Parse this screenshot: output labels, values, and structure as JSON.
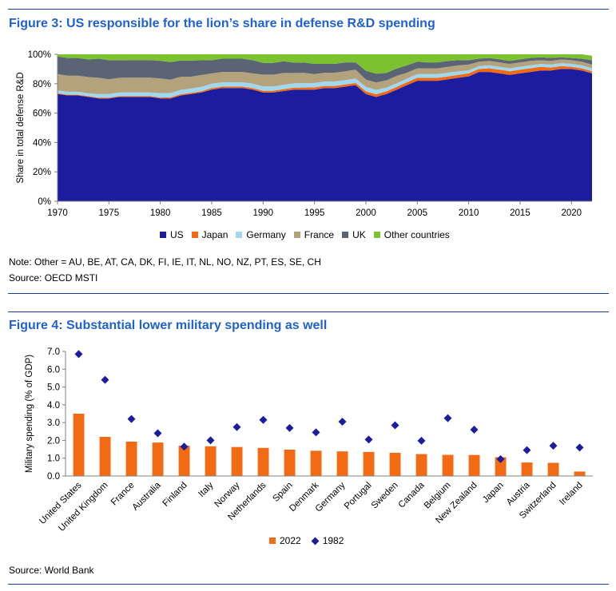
{
  "figure3": {
    "title": "Figure 3: US responsible for the lion’s share in defense R&D spending",
    "note": "Note: Other = AU, BE, AT, CA, DK, FI, IE, IT, NL, NO, NZ, PT, ES, SE, CH",
    "source": "Source: OECD MSTI"
  },
  "figure4": {
    "title": "Figure 4: Substantial lower military spending as well",
    "source": "Source: World Bank"
  },
  "chart_data": [
    {
      "type": "area",
      "title": "Figure 3: US responsible for the lion’s share in defense R&D spending",
      "ylabel": "Share in total defense R&D",
      "xlim": [
        1970,
        2022
      ],
      "ylim": [
        0,
        100
      ],
      "x_ticks": [
        "1970",
        "1975",
        "1980",
        "1985",
        "1990",
        "1995",
        "2000",
        "2005",
        "2010",
        "2015",
        "2020"
      ],
      "y_ticks": [
        "0%",
        "20%",
        "40%",
        "60%",
        "80%",
        "100%"
      ],
      "legend_position": "bottom",
      "grid": false,
      "x": [
        1970,
        1971,
        1972,
        1973,
        1974,
        1975,
        1976,
        1977,
        1978,
        1979,
        1980,
        1981,
        1982,
        1983,
        1984,
        1985,
        1986,
        1987,
        1988,
        1989,
        1990,
        1991,
        1992,
        1993,
        1994,
        1995,
        1996,
        1997,
        1998,
        1999,
        2000,
        2001,
        2002,
        2003,
        2004,
        2005,
        2006,
        2007,
        2008,
        2009,
        2010,
        2011,
        2012,
        2013,
        2014,
        2015,
        2016,
        2017,
        2018,
        2019,
        2020,
        2021,
        2022
      ],
      "series": [
        {
          "name": "US",
          "color": "#1c1c9e",
          "values": [
            73,
            72,
            72,
            71,
            70,
            70,
            71,
            71,
            71,
            71,
            70,
            70,
            72,
            73,
            74,
            76,
            77,
            77,
            77,
            76,
            74,
            74,
            75,
            76,
            76,
            76,
            77,
            77,
            78,
            79,
            73,
            71,
            73,
            76,
            79,
            82,
            82,
            82,
            83,
            84,
            85,
            88,
            88,
            87,
            86,
            87,
            88,
            89,
            89,
            90,
            90,
            89,
            87
          ]
        },
        {
          "name": "Japan",
          "color": "#f26b14",
          "values": [
            0.5,
            0.5,
            0.5,
            0.5,
            0.5,
            0.5,
            0.5,
            0.6,
            0.6,
            0.6,
            0.6,
            0.7,
            0.8,
            0.8,
            0.9,
            1,
            1,
            1,
            1,
            1,
            1.2,
            1.2,
            1.3,
            1.3,
            1.4,
            1.5,
            1.5,
            1.5,
            1.5,
            1.5,
            1.8,
            1.8,
            1.8,
            1.8,
            2,
            2,
            2,
            2,
            2,
            2,
            2,
            2,
            2.5,
            2.5,
            2.5,
            2.5,
            2.5,
            2.5,
            2,
            2,
            1.5,
            1.5,
            1.5
          ]
        },
        {
          "name": "Germany",
          "color": "#9fd8f0",
          "values": [
            2,
            2,
            2,
            2,
            2.5,
            2.5,
            2.5,
            2.5,
            2.5,
            2.5,
            3,
            3,
            3,
            3,
            3,
            3,
            3,
            3,
            3,
            3,
            3,
            3,
            3,
            3,
            3,
            3,
            3,
            3,
            3,
            3,
            3,
            3,
            2.5,
            2.5,
            2.5,
            2.5,
            2.5,
            2.5,
            2.5,
            2.5,
            2,
            2,
            2,
            2,
            2,
            2,
            2,
            2,
            2,
            2,
            2,
            2,
            2
          ]
        },
        {
          "name": "France",
          "color": "#b3a27b",
          "values": [
            11,
            11,
            11,
            11,
            11,
            10,
            10,
            10,
            10,
            10,
            10,
            9,
            9,
            8,
            8,
            7,
            7,
            7,
            7,
            7,
            8,
            8,
            8,
            7,
            7,
            6,
            6,
            6,
            6,
            6,
            5,
            5,
            5,
            5,
            4,
            4,
            4,
            4,
            4,
            4,
            4,
            3,
            3,
            3,
            3,
            3,
            3,
            2.5,
            2.5,
            2.5,
            2.5,
            2.5,
            2.5
          ]
        },
        {
          "name": "UK",
          "color": "#5a6474",
          "values": [
            12,
            12,
            12,
            12,
            13,
            13,
            12,
            12,
            12,
            12,
            12,
            12,
            11,
            11,
            10,
            9,
            9,
            9,
            9,
            9,
            8,
            8,
            8,
            7,
            7,
            7,
            6,
            6,
            6,
            5,
            6,
            6,
            5,
            5,
            5,
            4.5,
            4,
            4,
            4,
            3.5,
            3,
            2,
            2,
            2,
            2,
            2,
            2,
            2,
            2,
            1.5,
            1.5,
            2,
            3
          ]
        },
        {
          "name": "Other countries",
          "color": "#7cc12f",
          "values": [
            1.5,
            2.5,
            2.5,
            3.5,
            3,
            4,
            4,
            3.9,
            3.9,
            3.9,
            4.4,
            5.3,
            4.2,
            4.2,
            4.1,
            4,
            3,
            3,
            3,
            4,
            5.8,
            5.8,
            4.7,
            5.7,
            5.6,
            6.5,
            6.5,
            6.5,
            5.5,
            5.5,
            11.2,
            13.2,
            12.7,
            9.7,
            7.5,
            5,
            5.5,
            5.5,
            4.5,
            4.5,
            4,
            3,
            2.5,
            3.5,
            4.5,
            3.5,
            2.5,
            2,
            2.5,
            2,
            2.5,
            3,
            3
          ]
        }
      ]
    },
    {
      "type": "bar",
      "title": "Figure 4: Substantial lower military spending as well",
      "ylabel": "Military spending (% of GDP)",
      "ylim": [
        0,
        7
      ],
      "y_ticks": [
        "0.0",
        "1.0",
        "2.0",
        "3.0",
        "4.0",
        "5.0",
        "6.0",
        "7.0"
      ],
      "legend_position": "bottom",
      "grid": false,
      "categories": [
        "United States",
        "United Kingdom",
        "France",
        "Australia",
        "Finland",
        "Italy",
        "Norway",
        "Netherlands",
        "Spain",
        "Denmark",
        "Germany",
        "Portugal",
        "Sweden",
        "Canada",
        "Belgium",
        "New Zealand",
        "Japan",
        "Austria",
        "Switzerland",
        "Ireland"
      ],
      "series": [
        {
          "name": "2022",
          "type": "bar",
          "color": "#f26b14",
          "values": [
            3.5,
            2.2,
            1.93,
            1.88,
            1.7,
            1.67,
            1.63,
            1.58,
            1.48,
            1.42,
            1.38,
            1.35,
            1.3,
            1.23,
            1.19,
            1.18,
            1.06,
            0.76,
            0.74,
            0.25
          ]
        },
        {
          "name": "1982",
          "type": "marker",
          "marker": "diamond",
          "color": "#1c1c9e",
          "values": [
            6.85,
            5.4,
            3.2,
            2.4,
            1.65,
            2.0,
            2.75,
            3.15,
            2.7,
            2.45,
            3.05,
            2.05,
            2.85,
            1.98,
            3.25,
            2.6,
            0.95,
            1.45,
            1.7,
            1.6
          ]
        }
      ]
    }
  ]
}
